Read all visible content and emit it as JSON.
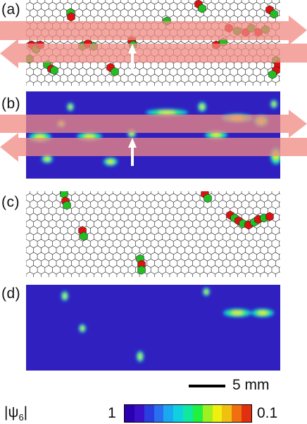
{
  "panels": [
    {
      "label": "(a)"
    },
    {
      "label": "(b)"
    },
    {
      "label": "(c)"
    },
    {
      "label": "(d)"
    }
  ],
  "scale_bar": {
    "label": "5 mm"
  },
  "colorbar": {
    "symbol": "|ψ",
    "subscript": "6",
    "symbol_end": "|",
    "left_value": "1",
    "right_value": "0.1",
    "colors": [
      "#2a00b0",
      "#3a10c8",
      "#2a3ee0",
      "#2a6ff0",
      "#1aa8f0",
      "#10d0e0",
      "#10e8a0",
      "#20f040",
      "#a0f020",
      "#f0f010",
      "#f0c010",
      "#f07010",
      "#e03010"
    ]
  },
  "colors": {
    "arrow": "#f08a80",
    "defect_red": "#e01010",
    "defect_green": "#20c020",
    "field_bg": "#3020c0"
  }
}
